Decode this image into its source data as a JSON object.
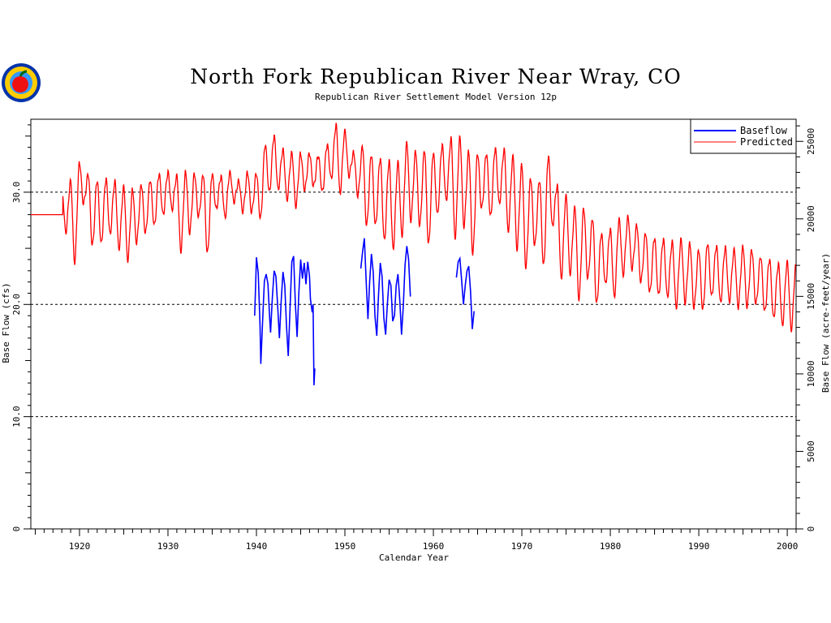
{
  "chart_data": {
    "type": "line",
    "title": "North Fork Republican River Near Wray, CO",
    "subtitle": "Republican River Settlement Model Version 12p",
    "xlabel": "Calendar Year",
    "ylabel": "Base Flow (cfs)",
    "y2label": "Base Flow (acre-feet/year)",
    "xlim": [
      1914.5,
      2001
    ],
    "ylim": [
      0,
      36.5
    ],
    "xticks": [
      1920,
      1930,
      1940,
      1950,
      1960,
      1970,
      1980,
      1990,
      2000
    ],
    "xtick_labels": [
      "1920",
      "1930",
      "1940",
      "1950",
      "1960",
      "1970",
      "1980",
      "1990",
      "2000"
    ],
    "yticks": [
      0,
      10,
      20,
      30
    ],
    "ytick_labels": [
      "0",
      "10.0",
      "20.0",
      "30.0"
    ],
    "y2ticks": [
      0,
      5000,
      10000,
      15000,
      20000,
      25000
    ],
    "y2tick_labels": [
      "0",
      "5000",
      "10000",
      "15000",
      "20000",
      "25000"
    ],
    "y2_scale_af_per_cfs": 724,
    "grid_y_dashed": [
      10,
      20,
      30
    ],
    "legend_position": "top-right",
    "colors": {
      "baseflow": "#0000ff",
      "predicted": "#ff0000"
    },
    "series": [
      {
        "name": "Baseflow",
        "color": "#0000ff",
        "segments": [
          [
            [
              1939.8,
              19.0
            ],
            [
              1939.9,
              21.5
            ],
            [
              1940.0,
              24.2
            ],
            [
              1940.2,
              22.8
            ],
            [
              1940.4,
              18.2
            ],
            [
              1940.5,
              14.7
            ],
            [
              1940.7,
              18.5
            ],
            [
              1940.9,
              22.1
            ],
            [
              1941.1,
              22.7
            ],
            [
              1941.3,
              21.8
            ],
            [
              1941.5,
              18.8
            ],
            [
              1941.6,
              17.5
            ],
            [
              1941.8,
              20.6
            ],
            [
              1942.0,
              23.0
            ],
            [
              1942.2,
              22.5
            ],
            [
              1942.4,
              19.8
            ],
            [
              1942.6,
              17.0
            ],
            [
              1942.8,
              20.3
            ],
            [
              1943.0,
              22.9
            ],
            [
              1943.2,
              21.7
            ],
            [
              1943.4,
              18.0
            ],
            [
              1943.6,
              15.4
            ],
            [
              1943.8,
              19.6
            ],
            [
              1944.0,
              23.8
            ],
            [
              1944.2,
              24.3
            ],
            [
              1944.4,
              20.0
            ],
            [
              1944.6,
              17.1
            ],
            [
              1944.8,
              21.1
            ],
            [
              1945.0,
              24.0
            ],
            [
              1945.2,
              22.3
            ],
            [
              1945.4,
              23.7
            ],
            [
              1945.6,
              21.8
            ],
            [
              1945.8,
              23.8
            ],
            [
              1946.0,
              22.5
            ],
            [
              1946.1,
              20.5
            ],
            [
              1946.3,
              19.3
            ],
            [
              1946.4,
              20.0
            ],
            [
              1946.5,
              12.8
            ],
            [
              1946.6,
              14.3
            ]
          ],
          [
            [
              1951.8,
              23.2
            ],
            [
              1952.0,
              24.7
            ],
            [
              1952.2,
              25.9
            ],
            [
              1952.4,
              22.1
            ],
            [
              1952.6,
              18.7
            ],
            [
              1952.8,
              22.0
            ],
            [
              1953.0,
              24.5
            ],
            [
              1953.2,
              22.9
            ],
            [
              1953.4,
              18.9
            ],
            [
              1953.6,
              17.2
            ],
            [
              1953.8,
              20.8
            ],
            [
              1954.0,
              23.7
            ],
            [
              1954.2,
              22.5
            ],
            [
              1954.4,
              18.8
            ],
            [
              1954.6,
              17.3
            ],
            [
              1954.8,
              20.0
            ],
            [
              1955.0,
              22.2
            ],
            [
              1955.2,
              21.7
            ],
            [
              1955.4,
              18.5
            ],
            [
              1955.6,
              19.0
            ],
            [
              1955.8,
              21.7
            ],
            [
              1956.0,
              22.7
            ],
            [
              1956.2,
              20.4
            ],
            [
              1956.4,
              17.3
            ],
            [
              1956.6,
              19.9
            ],
            [
              1956.8,
              23.5
            ],
            [
              1957.0,
              25.2
            ],
            [
              1957.2,
              24.0
            ],
            [
              1957.4,
              20.7
            ]
          ],
          [
            [
              1962.6,
              22.4
            ],
            [
              1962.8,
              23.8
            ],
            [
              1963.0,
              24.1
            ],
            [
              1963.2,
              22.1
            ],
            [
              1963.4,
              20.0
            ],
            [
              1963.6,
              21.7
            ],
            [
              1963.8,
              23.0
            ],
            [
              1964.0,
              23.4
            ],
            [
              1964.2,
              21.2
            ],
            [
              1964.4,
              17.8
            ],
            [
              1964.6,
              19.4
            ]
          ]
        ]
      },
      {
        "name": "Predicted",
        "color": "#ff0000",
        "baseline_until": 1918.1,
        "baseline_value": 28.0,
        "annual_peaks": [
          [
            1918,
            30.5
          ],
          [
            1919,
            31.0
          ],
          [
            1920,
            32.6
          ],
          [
            1921,
            31.5
          ],
          [
            1922,
            31.0
          ],
          [
            1923,
            31.2
          ],
          [
            1924,
            31.0
          ],
          [
            1925,
            30.5
          ],
          [
            1926,
            30.2
          ],
          [
            1927,
            30.6
          ],
          [
            1928,
            31.0
          ],
          [
            1929,
            31.6
          ],
          [
            1930,
            31.8
          ],
          [
            1931,
            31.5
          ],
          [
            1932,
            31.8
          ],
          [
            1933,
            31.6
          ],
          [
            1934,
            31.5
          ],
          [
            1935,
            31.6
          ],
          [
            1936,
            31.4
          ],
          [
            1937,
            31.8
          ],
          [
            1938,
            31.0
          ],
          [
            1939,
            31.7
          ],
          [
            1940,
            31.6
          ],
          [
            1941,
            34.2
          ],
          [
            1942,
            35.0
          ],
          [
            1943,
            33.8
          ],
          [
            1944,
            33.5
          ],
          [
            1945,
            33.4
          ],
          [
            1946,
            33.4
          ],
          [
            1947,
            33.2
          ],
          [
            1948,
            34.2
          ],
          [
            1949,
            36.0
          ],
          [
            1950,
            35.5
          ],
          [
            1951,
            33.5
          ],
          [
            1952,
            34.0
          ],
          [
            1953,
            33.3
          ],
          [
            1954,
            33.0
          ],
          [
            1955,
            32.8
          ],
          [
            1956,
            32.7
          ],
          [
            1957,
            34.4
          ],
          [
            1958,
            33.6
          ],
          [
            1959,
            33.7
          ],
          [
            1960,
            33.5
          ],
          [
            1961,
            34.2
          ],
          [
            1962,
            34.8
          ],
          [
            1963,
            34.9
          ],
          [
            1964,
            33.6
          ],
          [
            1965,
            33.4
          ],
          [
            1966,
            33.4
          ],
          [
            1967,
            33.9
          ],
          [
            1968,
            33.8
          ],
          [
            1969,
            33.2
          ],
          [
            1970,
            32.4
          ],
          [
            1971,
            31.2
          ],
          [
            1972,
            31.0
          ],
          [
            1973,
            33.2
          ],
          [
            1974,
            30.6
          ],
          [
            1975,
            29.7
          ],
          [
            1976,
            28.6
          ],
          [
            1977,
            28.5
          ],
          [
            1978,
            27.6
          ],
          [
            1979,
            26.3
          ],
          [
            1980,
            26.7
          ],
          [
            1981,
            27.6
          ],
          [
            1982,
            27.8
          ],
          [
            1983,
            27.0
          ],
          [
            1984,
            26.3
          ],
          [
            1985,
            25.9
          ],
          [
            1986,
            25.8
          ],
          [
            1987,
            25.6
          ],
          [
            1988,
            25.8
          ],
          [
            1989,
            25.4
          ],
          [
            1990,
            24.8
          ],
          [
            1991,
            25.4
          ],
          [
            1992,
            25.2
          ],
          [
            1993,
            25.1
          ],
          [
            1994,
            24.9
          ],
          [
            1995,
            25.1
          ],
          [
            1996,
            24.8
          ],
          [
            1997,
            24.2
          ],
          [
            1998,
            24.0
          ],
          [
            1999,
            23.6
          ],
          [
            2000,
            23.8
          ]
        ],
        "annual_troughs": [
          [
            1918,
            26.5
          ],
          [
            1919,
            23.8
          ],
          [
            1920,
            29.0
          ],
          [
            1921,
            25.2
          ],
          [
            1922,
            25.4
          ],
          [
            1923,
            26.3
          ],
          [
            1924,
            25.0
          ],
          [
            1925,
            24.0
          ],
          [
            1926,
            25.5
          ],
          [
            1927,
            26.3
          ],
          [
            1928,
            27.0
          ],
          [
            1929,
            28.0
          ],
          [
            1930,
            28.5
          ],
          [
            1931,
            24.8
          ],
          [
            1932,
            26.4
          ],
          [
            1933,
            27.8
          ],
          [
            1934,
            24.5
          ],
          [
            1935,
            28.5
          ],
          [
            1936,
            27.8
          ],
          [
            1937,
            29.2
          ],
          [
            1938,
            28.3
          ],
          [
            1939,
            28.2
          ],
          [
            1940,
            27.6
          ],
          [
            1941,
            30.0
          ],
          [
            1942,
            30.3
          ],
          [
            1943,
            29.4
          ],
          [
            1944,
            28.8
          ],
          [
            1945,
            30.2
          ],
          [
            1946,
            30.5
          ],
          [
            1947,
            30.0
          ],
          [
            1948,
            31.2
          ],
          [
            1949,
            30.0
          ],
          [
            1950,
            31.5
          ],
          [
            1951,
            29.7
          ],
          [
            1952,
            27.0
          ],
          [
            1953,
            27.0
          ],
          [
            1954,
            25.7
          ],
          [
            1955,
            25.0
          ],
          [
            1956,
            26.2
          ],
          [
            1957,
            27.5
          ],
          [
            1958,
            27.0
          ],
          [
            1959,
            25.3
          ],
          [
            1960,
            28.0
          ],
          [
            1961,
            29.3
          ],
          [
            1962,
            26.0
          ],
          [
            1963,
            27.0
          ],
          [
            1964,
            24.5
          ],
          [
            1965,
            28.5
          ],
          [
            1966,
            27.8
          ],
          [
            1967,
            29.0
          ],
          [
            1968,
            26.6
          ],
          [
            1969,
            25.0
          ],
          [
            1970,
            23.3
          ],
          [
            1971,
            25.2
          ],
          [
            1972,
            23.4
          ],
          [
            1973,
            27.0
          ],
          [
            1974,
            22.4
          ],
          [
            1975,
            22.8
          ],
          [
            1976,
            20.5
          ],
          [
            1977,
            22.3
          ],
          [
            1978,
            20.0
          ],
          [
            1979,
            21.8
          ],
          [
            1980,
            20.7
          ],
          [
            1981,
            22.7
          ],
          [
            1982,
            23.2
          ],
          [
            1983,
            22.0
          ],
          [
            1984,
            21.0
          ],
          [
            1985,
            20.8
          ],
          [
            1986,
            20.7
          ],
          [
            1987,
            19.8
          ],
          [
            1988,
            20.2
          ],
          [
            1989,
            19.7
          ],
          [
            1990,
            19.5
          ],
          [
            1991,
            20.7
          ],
          [
            1992,
            20.2
          ],
          [
            1993,
            20.3
          ],
          [
            1994,
            19.8
          ],
          [
            1995,
            19.8
          ],
          [
            1996,
            20.0
          ],
          [
            1997,
            19.3
          ],
          [
            1998,
            18.8
          ],
          [
            1999,
            18.2
          ],
          [
            2000,
            17.8
          ]
        ]
      }
    ]
  },
  "logo": {
    "name": "logo-seal"
  }
}
